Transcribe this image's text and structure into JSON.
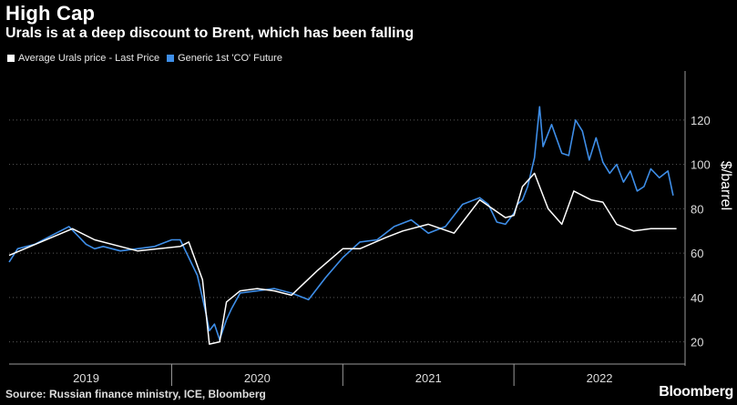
{
  "title": "High Cap",
  "subtitle": "Urals is at a deep discount to Brent, which has been falling",
  "source": "Source: Russian finance ministry, ICE, Bloomberg",
  "brand": "Bloomberg",
  "chart_data": {
    "type": "line",
    "ylabel": "$/barrel",
    "ylim": [
      10,
      138
    ],
    "xlim": [
      2018.55,
      2022.5
    ],
    "y_ticks": [
      20,
      40,
      60,
      80,
      100,
      120
    ],
    "x_tick_labels": [
      {
        "label": "2019",
        "x": 2019.0
      },
      {
        "label": "2020",
        "x": 2020.0
      },
      {
        "label": "2021",
        "x": 2021.0
      },
      {
        "label": "2022",
        "x": 2022.0
      }
    ],
    "year_boundaries": [
      2019.5,
      2020.5,
      2021.5
    ],
    "grid": true,
    "legend_position": "top-left",
    "series": [
      {
        "name": "Average Urals price - Last Price",
        "color": "#ffffff",
        "x": [
          2018.55,
          2018.92,
          2019.05,
          2019.3,
          2019.55,
          2019.6,
          2019.68,
          2019.72,
          2019.78,
          2019.82,
          2019.9,
          2020.0,
          2020.1,
          2020.2,
          2020.35,
          2020.5,
          2020.6,
          2020.75,
          2020.85,
          2021.0,
          2021.15,
          2021.3,
          2021.45,
          2021.5,
          2021.55,
          2021.62,
          2021.7,
          2021.78,
          2021.85,
          2021.9,
          2021.95,
          2022.02,
          2022.1,
          2022.2,
          2022.3,
          2022.38,
          2022.45
        ],
        "y": [
          59,
          71,
          66,
          61,
          63,
          65,
          48,
          19,
          20,
          38,
          43,
          44,
          43,
          41,
          52,
          62,
          62,
          67,
          70,
          73,
          69,
          84,
          76,
          77,
          90,
          96,
          80,
          73,
          88,
          86,
          84,
          83,
          73,
          70,
          71,
          71,
          71
        ]
      },
      {
        "name": "Generic 1st 'CO' Future",
        "color": "#3e8ee8",
        "x": [
          2018.55,
          2018.6,
          2018.7,
          2018.8,
          2018.9,
          2019.0,
          2019.05,
          2019.1,
          2019.2,
          2019.3,
          2019.4,
          2019.5,
          2019.55,
          2019.6,
          2019.65,
          2019.7,
          2019.72,
          2019.75,
          2019.78,
          2019.82,
          2019.85,
          2019.9,
          2020.0,
          2020.1,
          2020.2,
          2020.3,
          2020.4,
          2020.5,
          2020.6,
          2020.7,
          2020.8,
          2020.9,
          2021.0,
          2021.1,
          2021.2,
          2021.3,
          2021.35,
          2021.4,
          2021.45,
          2021.5,
          2021.52,
          2021.55,
          2021.58,
          2021.62,
          2021.65,
          2021.67,
          2021.72,
          2021.78,
          2021.82,
          2021.86,
          2021.9,
          2021.94,
          2021.98,
          2022.02,
          2022.06,
          2022.1,
          2022.14,
          2022.18,
          2022.22,
          2022.26,
          2022.3,
          2022.35,
          2022.4,
          2022.43
        ],
        "y": [
          56,
          62,
          64,
          68,
          72,
          64,
          62,
          63,
          61,
          62,
          63,
          66,
          66,
          58,
          50,
          33,
          25,
          28,
          21,
          30,
          35,
          42,
          43,
          44,
          42,
          39,
          49,
          58,
          65,
          66,
          72,
          75,
          69,
          72,
          82,
          85,
          82,
          74,
          73,
          78,
          82,
          84,
          90,
          103,
          126,
          108,
          118,
          105,
          104,
          120,
          115,
          102,
          112,
          101,
          96,
          100,
          92,
          97,
          88,
          90,
          98,
          94,
          97,
          86
        ]
      }
    ]
  }
}
